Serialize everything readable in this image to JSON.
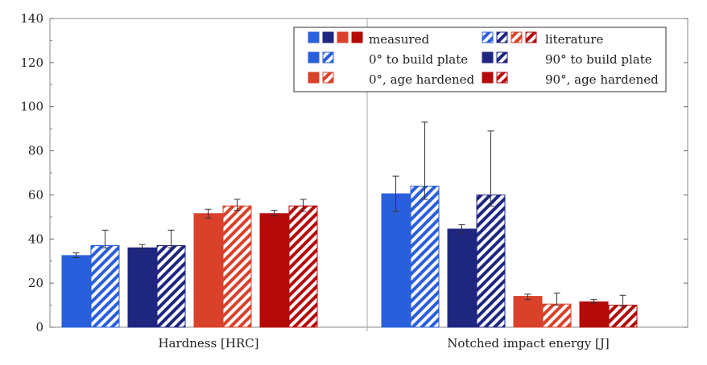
{
  "chart_data": {
    "type": "bar",
    "title": "",
    "xlabel": "",
    "ylabel": "",
    "ylim": [
      0,
      140
    ],
    "yticks": [
      0,
      20,
      40,
      60,
      80,
      100,
      120,
      140
    ],
    "grid": false,
    "legend_position": "top-right",
    "groups": [
      "Hardness [HRC]",
      "Notched impact energy [J]"
    ],
    "series": [
      {
        "name": "0° to build plate, measured",
        "source": "measured",
        "orientation": "0°",
        "color": "#2a5fdb",
        "values": [
          32.5,
          60.5
        ],
        "errors": [
          [
            31.5,
            33.7
          ],
          [
            52.5,
            68.5
          ]
        ]
      },
      {
        "name": "0° to build plate, literature",
        "source": "literature",
        "orientation": "0°",
        "color": "#2a5fdb",
        "values": [
          37,
          64
        ],
        "errors": [
          [
            36,
            44
          ],
          [
            58,
            93
          ]
        ]
      },
      {
        "name": "90° to build plate, measured",
        "source": "measured",
        "orientation": "90°",
        "color": "#1f2680",
        "values": [
          36,
          44.5
        ],
        "errors": [
          [
            35,
            37.5
          ],
          [
            42.5,
            46.5
          ]
        ]
      },
      {
        "name": "90° to build plate, literature",
        "source": "literature",
        "orientation": "90°",
        "color": "#1f2680",
        "values": [
          37,
          60
        ],
        "errors": [
          [
            36,
            44
          ],
          [
            55,
            89
          ]
        ]
      },
      {
        "name": "0°, age hardened, measured",
        "source": "measured",
        "orientation": "0° aged",
        "color": "#d9412a",
        "values": [
          51.5,
          14
        ],
        "errors": [
          [
            49.5,
            53.5
          ],
          [
            12.5,
            15
          ]
        ]
      },
      {
        "name": "0°, age hardened, literature",
        "source": "literature",
        "orientation": "0° aged",
        "color": "#d9412a",
        "values": [
          55,
          10.5
        ],
        "errors": [
          [
            53,
            58
          ],
          [
            10,
            15.5
          ]
        ]
      },
      {
        "name": "90°, age hardened, measured",
        "source": "measured",
        "orientation": "90° aged",
        "color": "#b50a0a",
        "values": [
          51.5,
          11.5
        ],
        "errors": [
          [
            50.5,
            53
          ],
          [
            11,
            12.5
          ]
        ]
      },
      {
        "name": "90°, age hardened, literature",
        "source": "literature",
        "orientation": "90° aged",
        "color": "#b50a0a",
        "values": [
          55,
          10
        ],
        "errors": [
          [
            52.5,
            58
          ],
          [
            9.5,
            14.5
          ]
        ]
      }
    ],
    "legend": {
      "measured": "measured",
      "literature": "literature",
      "entries": [
        {
          "label": "0° to build plate",
          "color": "#2a5fdb"
        },
        {
          "label": "90° to build plate",
          "color": "#1f2680"
        },
        {
          "label": "0°, age hardened",
          "color": "#d9412a"
        },
        {
          "label": "90°, age hardened",
          "color": "#b50a0a"
        }
      ]
    }
  }
}
